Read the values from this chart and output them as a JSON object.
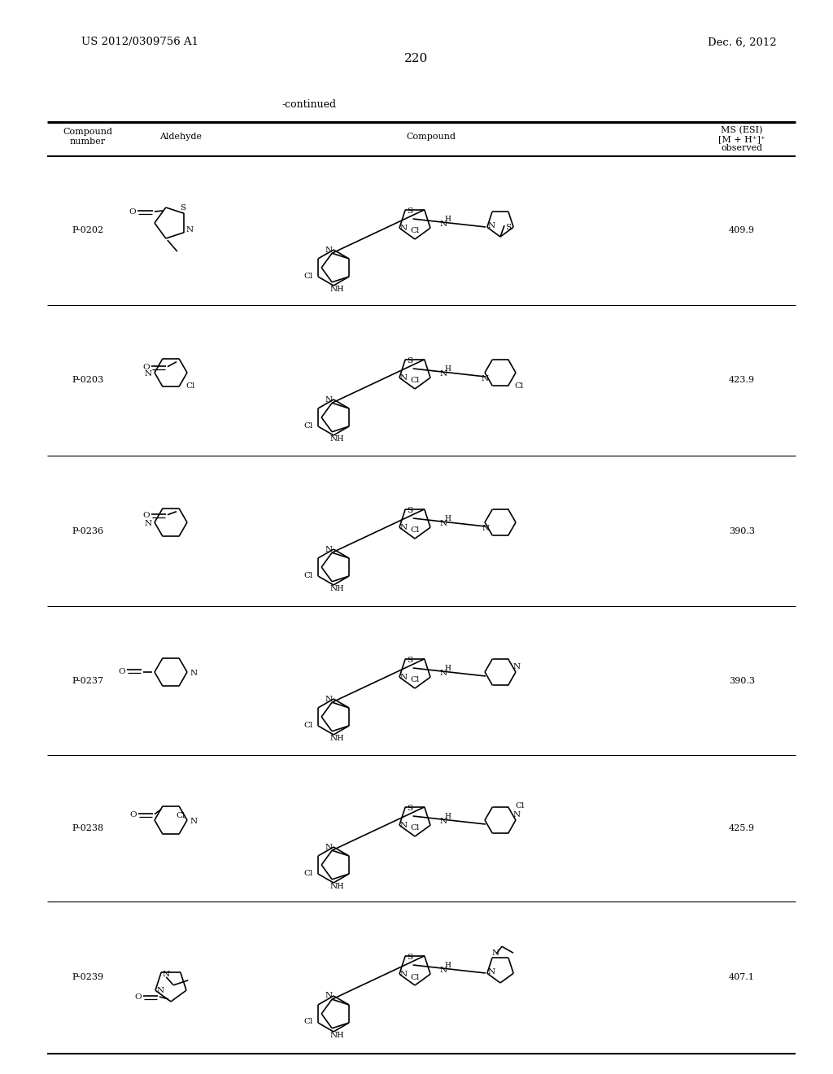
{
  "page_number": "220",
  "patent_number": "US 2012/0309756 A1",
  "patent_date": "Dec. 6, 2012",
  "continued_label": "-continued",
  "compounds": [
    "P-0202",
    "P-0203",
    "P-0236",
    "P-0237",
    "P-0238",
    "P-0239"
  ],
  "ms_values": [
    "409.9",
    "423.9",
    "390.3",
    "390.3",
    "425.9",
    "407.1"
  ],
  "background_color": "#ffffff",
  "text_color": "#000000"
}
